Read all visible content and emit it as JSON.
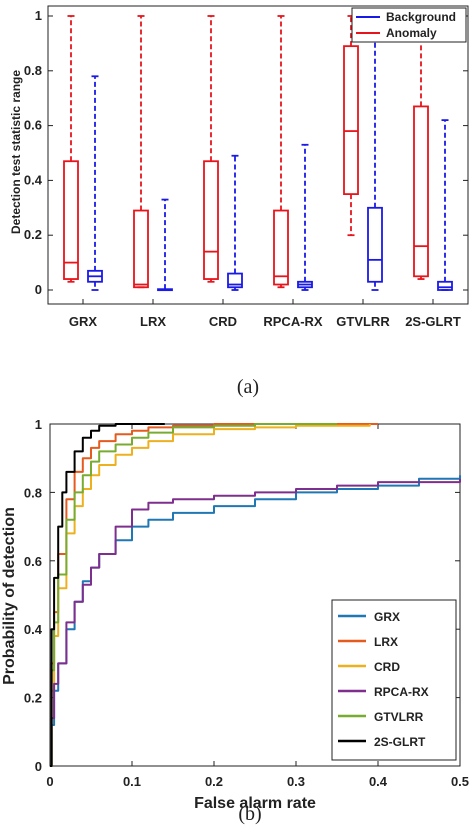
{
  "chart_data": [
    {
      "type": "box",
      "caption": "(a)",
      "ylabel": "Detection test statistic range",
      "ylim": [
        0,
        1
      ],
      "yticks": [
        "0",
        "0.2",
        "0.4",
        "0.6",
        "0.8",
        "1"
      ],
      "categories": [
        "GRX",
        "LRX",
        "CRD",
        "RPCA-RX",
        "GTVLRR",
        "2S-GLRT"
      ],
      "legend": {
        "position": "top-right",
        "entries": [
          "Background",
          "Anomaly"
        ]
      },
      "series": [
        {
          "name": "Anomaly",
          "color": "#e8141b",
          "boxes": [
            {
              "whislo": 0.03,
              "q1": 0.04,
              "med": 0.1,
              "q3": 0.47,
              "whishi": 1.0
            },
            {
              "whislo": 0.01,
              "q1": 0.01,
              "med": 0.02,
              "q3": 0.29,
              "whishi": 1.0
            },
            {
              "whislo": 0.03,
              "q1": 0.04,
              "med": 0.14,
              "q3": 0.47,
              "whishi": 1.0
            },
            {
              "whislo": 0.01,
              "q1": 0.02,
              "med": 0.05,
              "q3": 0.29,
              "whishi": 1.0
            },
            {
              "whislo": 0.2,
              "q1": 0.35,
              "med": 0.58,
              "q3": 0.89,
              "whishi": 1.0
            },
            {
              "whislo": 0.04,
              "q1": 0.05,
              "med": 0.16,
              "q3": 0.67,
              "whishi": 1.0
            }
          ]
        },
        {
          "name": "Background",
          "color": "#1a1ae8",
          "boxes": [
            {
              "whislo": 0.0,
              "q1": 0.03,
              "med": 0.05,
              "q3": 0.07,
              "whishi": 0.78
            },
            {
              "whislo": 0.0,
              "q1": 0.0,
              "med": 0.0,
              "q3": 0.003,
              "whishi": 0.33
            },
            {
              "whislo": 0.0,
              "q1": 0.01,
              "med": 0.02,
              "q3": 0.06,
              "whishi": 0.49
            },
            {
              "whislo": 0.0,
              "q1": 0.01,
              "med": 0.02,
              "q3": 0.03,
              "whishi": 0.53
            },
            {
              "whislo": 0.0,
              "q1": 0.03,
              "med": 0.11,
              "q3": 0.3,
              "whishi": 1.0
            },
            {
              "whislo": 0.0,
              "q1": 0.0,
              "med": 0.01,
              "q3": 0.03,
              "whishi": 0.62
            }
          ]
        }
      ]
    },
    {
      "type": "line",
      "caption": "(b)",
      "xlabel": "False alarm rate",
      "ylabel": "Probability of detection",
      "xlim": [
        0,
        0.5
      ],
      "ylim": [
        0,
        1
      ],
      "xticks": [
        "0",
        "0.1",
        "0.2",
        "0.3",
        "0.4",
        "0.5"
      ],
      "yticks": [
        "0",
        "0.2",
        "0.4",
        "0.6",
        "0.8",
        "1"
      ],
      "grid": false,
      "legend": {
        "position": "bottom-right"
      },
      "series": [
        {
          "name": "GRX",
          "color": "#1f77b4",
          "x": [
            0,
            0.002,
            0.005,
            0.01,
            0.02,
            0.03,
            0.04,
            0.05,
            0.06,
            0.08,
            0.1,
            0.12,
            0.15,
            0.2,
            0.25,
            0.3,
            0.35,
            0.4,
            0.45,
            0.5
          ],
          "y": [
            0,
            0.12,
            0.22,
            0.3,
            0.4,
            0.48,
            0.54,
            0.58,
            0.62,
            0.66,
            0.7,
            0.72,
            0.74,
            0.76,
            0.78,
            0.8,
            0.81,
            0.82,
            0.84,
            0.85
          ]
        },
        {
          "name": "LRX",
          "color": "#e55b1f",
          "x": [
            0,
            0.002,
            0.005,
            0.01,
            0.02,
            0.03,
            0.04,
            0.05,
            0.06,
            0.08,
            0.1,
            0.12,
            0.15,
            0.2,
            0.3,
            0.4
          ],
          "y": [
            0,
            0.3,
            0.45,
            0.62,
            0.78,
            0.86,
            0.9,
            0.93,
            0.95,
            0.97,
            0.98,
            0.99,
            0.995,
            1.0,
            1.0,
            1.0
          ]
        },
        {
          "name": "CRD",
          "color": "#edb120",
          "x": [
            0,
            0.002,
            0.005,
            0.01,
            0.02,
            0.03,
            0.04,
            0.05,
            0.06,
            0.08,
            0.1,
            0.12,
            0.15,
            0.2,
            0.25,
            0.3,
            0.39
          ],
          "y": [
            0,
            0.22,
            0.38,
            0.52,
            0.68,
            0.76,
            0.81,
            0.85,
            0.88,
            0.91,
            0.93,
            0.95,
            0.97,
            0.985,
            0.99,
            0.995,
            1.0
          ]
        },
        {
          "name": "RPCA-RX",
          "color": "#7e2f8e",
          "x": [
            0,
            0.002,
            0.005,
            0.01,
            0.02,
            0.03,
            0.04,
            0.05,
            0.06,
            0.08,
            0.1,
            0.12,
            0.15,
            0.2,
            0.25,
            0.3,
            0.35,
            0.4,
            0.45,
            0.5
          ],
          "y": [
            0,
            0.14,
            0.24,
            0.3,
            0.42,
            0.48,
            0.53,
            0.58,
            0.62,
            0.7,
            0.75,
            0.77,
            0.78,
            0.79,
            0.8,
            0.81,
            0.82,
            0.83,
            0.83,
            0.84
          ]
        },
        {
          "name": "GTVLRR",
          "color": "#77ac30",
          "x": [
            0,
            0.002,
            0.005,
            0.01,
            0.02,
            0.03,
            0.04,
            0.05,
            0.06,
            0.08,
            0.1,
            0.12,
            0.15,
            0.2,
            0.25,
            0.3,
            0.35
          ],
          "y": [
            0,
            0.28,
            0.42,
            0.56,
            0.72,
            0.8,
            0.85,
            0.89,
            0.92,
            0.94,
            0.96,
            0.975,
            0.99,
            0.995,
            1.0,
            1.0,
            1.0
          ]
        },
        {
          "name": "2S-GLRT",
          "color": "#000000",
          "x": [
            0,
            0.002,
            0.005,
            0.01,
            0.015,
            0.02,
            0.03,
            0.04,
            0.05,
            0.06,
            0.08,
            0.1,
            0.12,
            0.14
          ],
          "y": [
            0,
            0.4,
            0.55,
            0.7,
            0.8,
            0.86,
            0.92,
            0.96,
            0.98,
            0.995,
            1.0,
            1.0,
            1.0,
            1.0
          ]
        }
      ]
    }
  ]
}
